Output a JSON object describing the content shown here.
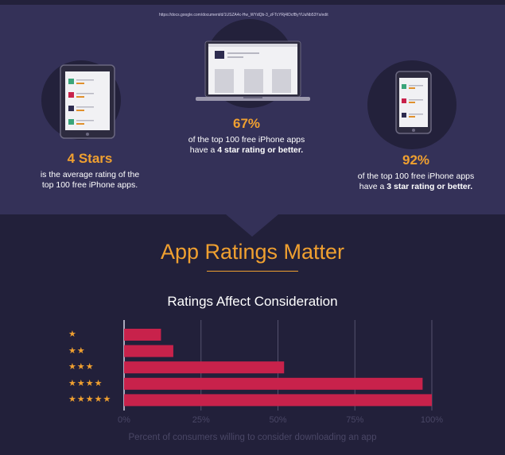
{
  "header": {
    "url": "https://docs.google.com/document/d/1USZA4c-Hw_WYdQb-3_zFTcYRj4IDcfByYUuNb53Ys/edit"
  },
  "stats": [
    {
      "value": "4 Stars",
      "line1": "is the average rating of the",
      "line2": "top 100 free iPhone apps.",
      "line2_prefix": "",
      "line2_bold": ""
    },
    {
      "value": "67%",
      "line1": "of the top 100 free iPhone apps",
      "line2_prefix": "have a ",
      "line2_bold": "4 star rating or better."
    },
    {
      "value": "92%",
      "line1": "of the top 100 free iPhone apps",
      "line2_prefix": "have a ",
      "line2_bold": "3 star rating or better."
    }
  ],
  "section": {
    "title": "App Ratings Matter"
  },
  "icons": {
    "device_1": "tablet-icon",
    "device_2": "laptop-icon",
    "device_3": "phone-icon",
    "star": "star-icon"
  },
  "colors": {
    "accent": "#f0a030",
    "bar": "#c8224b",
    "background": "#22203a",
    "panel": "#343158"
  },
  "chart_data": {
    "type": "bar",
    "orientation": "horizontal",
    "title": "Ratings Affect Consideration",
    "categories": [
      "★",
      "★★",
      "★★★",
      "★★★★",
      "★★★★★"
    ],
    "values": [
      12,
      16,
      52,
      97,
      100
    ],
    "xlabel": "Percent of consumers willing to consider downloading an app",
    "xticks": [
      "0%",
      "25%",
      "50%",
      "75%",
      "100%"
    ],
    "xlim": [
      0,
      100
    ],
    "grid": true
  }
}
